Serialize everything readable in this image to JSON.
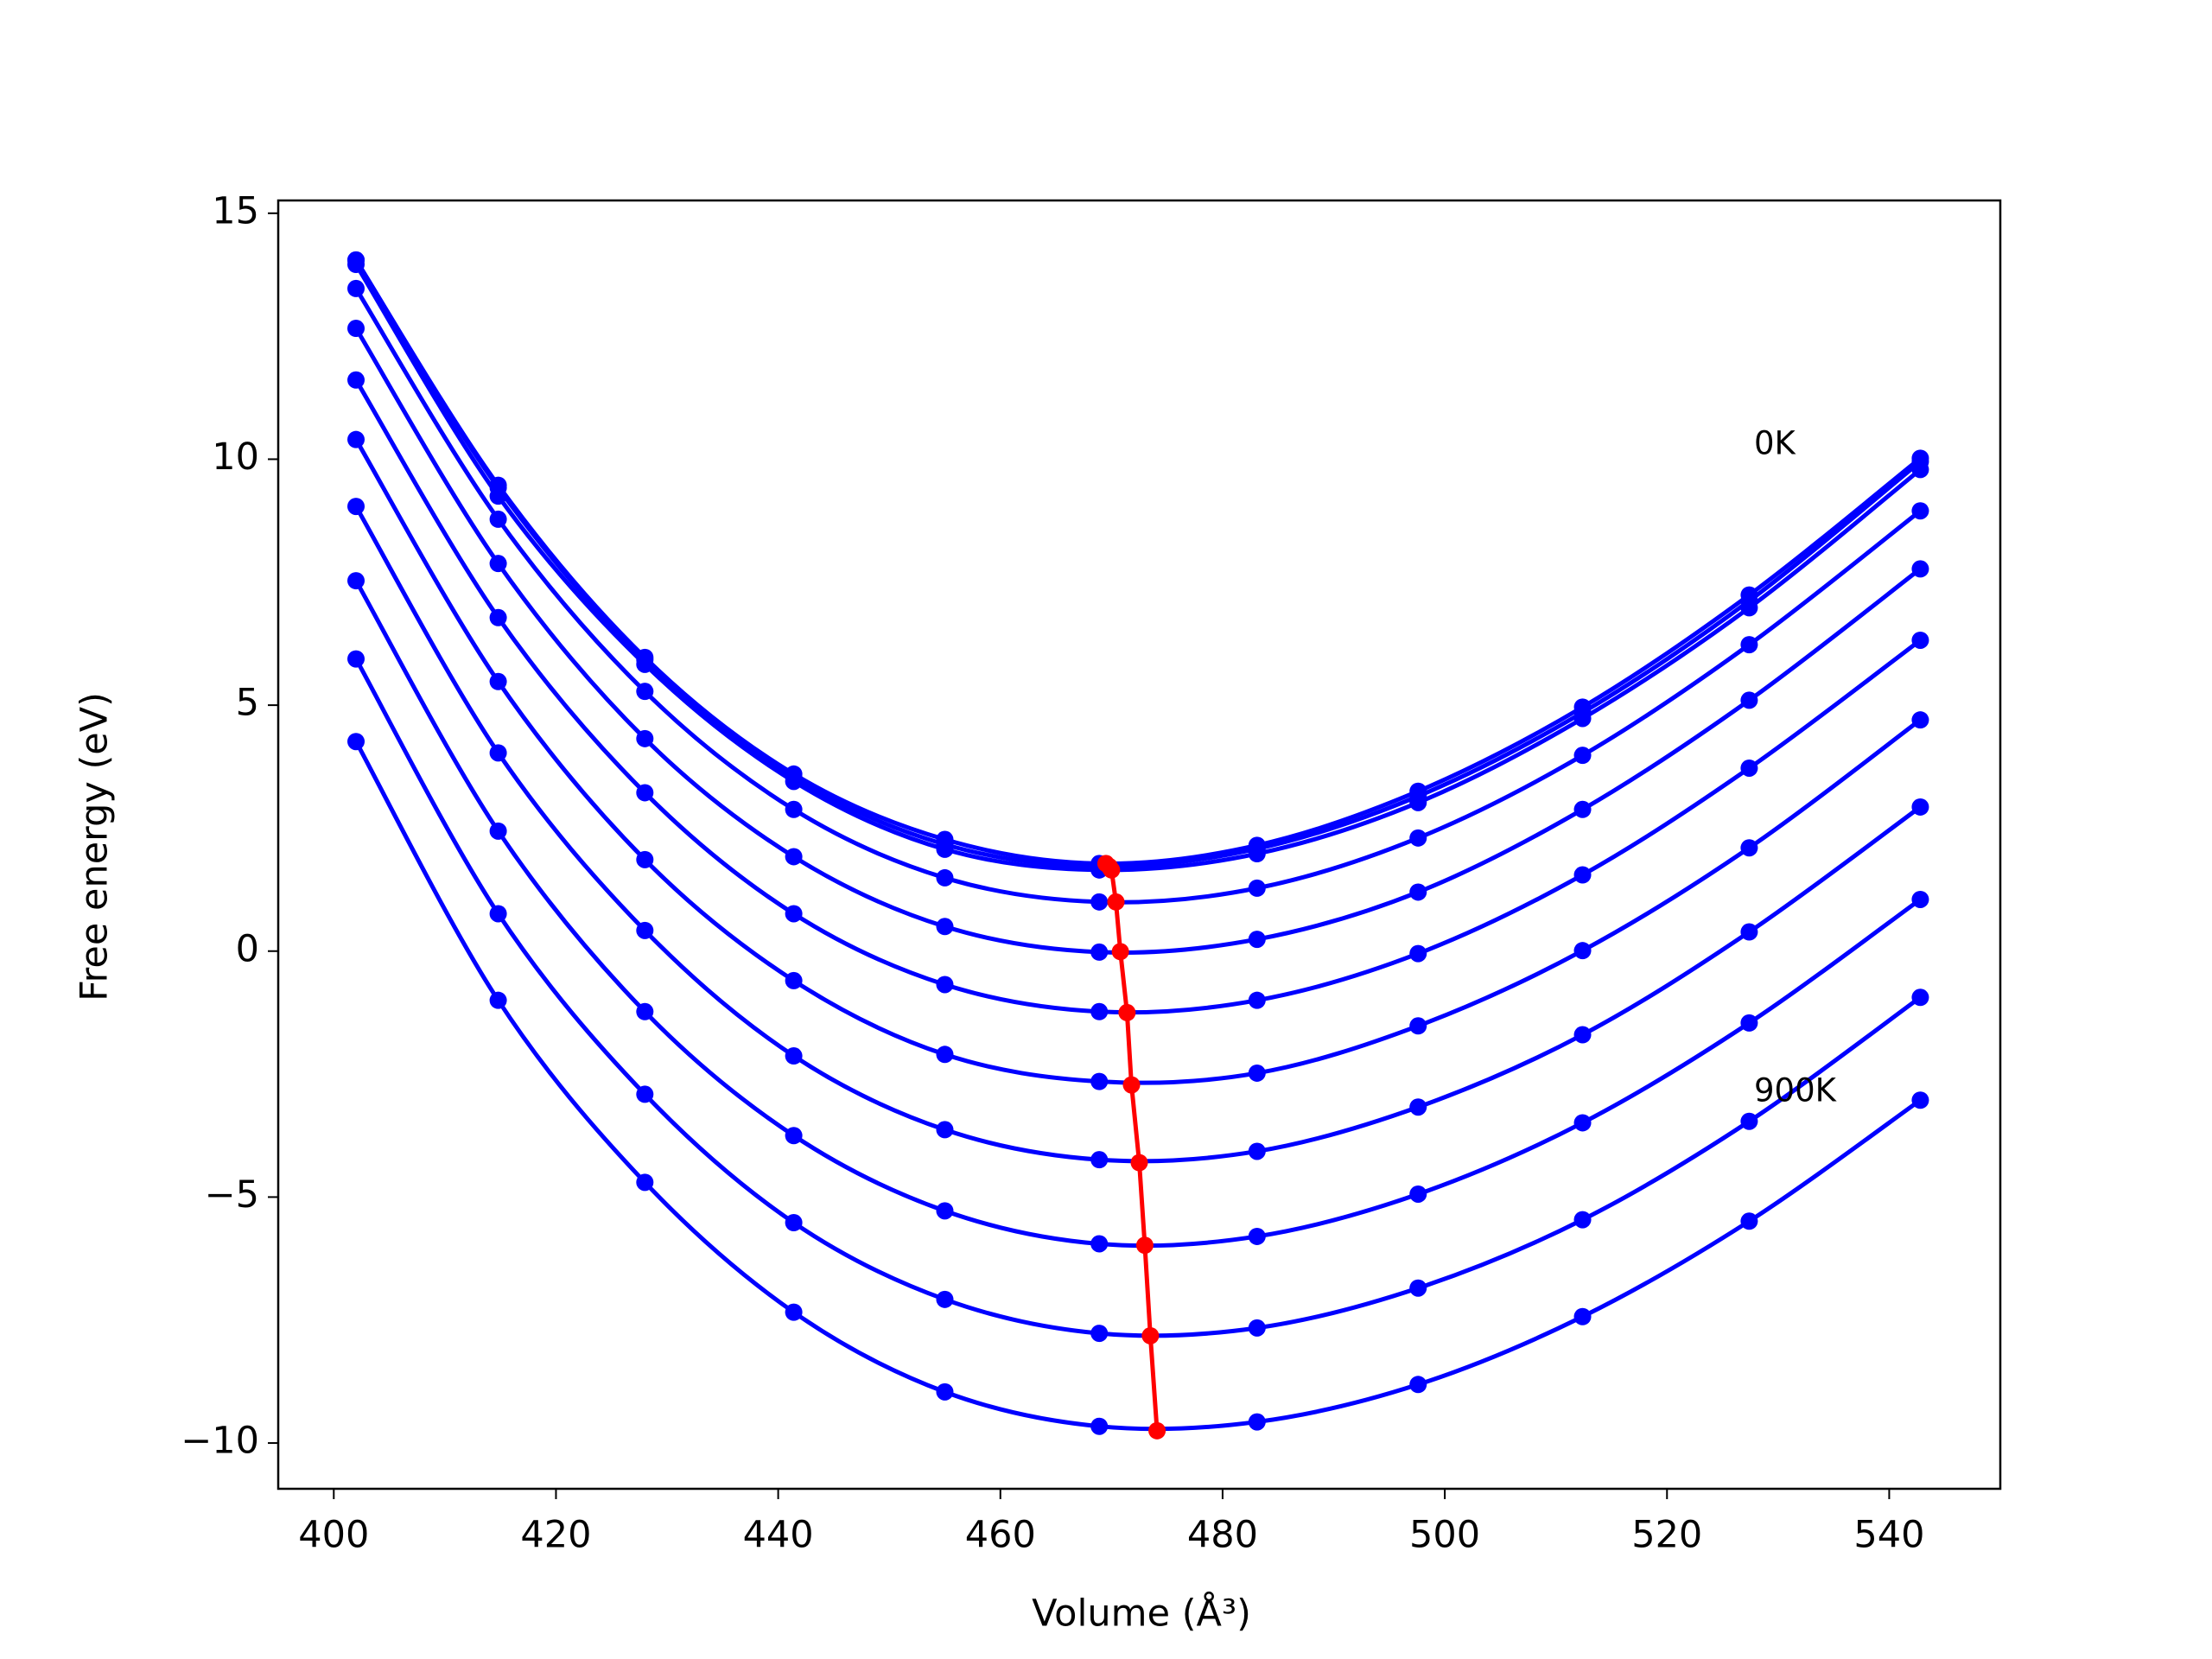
{
  "chart_data": {
    "type": "line",
    "xlabel": "Volume (Å³)",
    "ylabel": "Free energy (eV)",
    "x": [
      402.0,
      414.8,
      428.0,
      441.4,
      455.0,
      468.9,
      483.1,
      497.6,
      512.4,
      527.4,
      542.8
    ],
    "series": [
      {
        "color": "#0000ff",
        "values": [
          14.05,
          9.47,
          5.97,
          3.6,
          2.27,
          1.78,
          2.15,
          3.25,
          4.96,
          7.24,
          10.02
        ]
      },
      {
        "color": "#0000ff",
        "values": [
          14.05,
          9.42,
          5.92,
          3.53,
          2.17,
          1.72,
          2.08,
          3.15,
          4.85,
          7.12,
          9.95
        ]
      },
      {
        "color": "#0000ff",
        "values": [
          13.96,
          9.25,
          5.83,
          3.45,
          2.07,
          1.65,
          1.98,
          3.02,
          4.73,
          6.98,
          9.79
        ]
      },
      {
        "color": "#0000ff",
        "values": [
          13.47,
          8.78,
          5.28,
          2.88,
          1.49,
          1.0,
          1.28,
          2.3,
          3.98,
          6.23,
          8.95
        ]
      },
      {
        "color": "#0000ff",
        "values": [
          12.66,
          7.88,
          4.32,
          1.92,
          0.5,
          -0.02,
          0.24,
          1.2,
          2.88,
          5.1,
          7.77
        ]
      },
      {
        "color": "#0000ff",
        "values": [
          11.61,
          6.78,
          3.22,
          0.76,
          -0.68,
          -1.23,
          -1.0,
          -0.05,
          1.55,
          3.72,
          6.32
        ]
      },
      {
        "color": "#0000ff",
        "values": [
          10.4,
          5.48,
          1.86,
          -0.6,
          -2.1,
          -2.65,
          -2.48,
          -1.52,
          0.01,
          2.1,
          4.7
        ]
      },
      {
        "color": "#0000ff",
        "values": [
          9.04,
          4.03,
          0.42,
          -2.13,
          -3.63,
          -4.24,
          -4.07,
          -3.17,
          -1.7,
          0.39,
          2.93
        ]
      },
      {
        "color": "#0000ff",
        "values": [
          7.53,
          2.44,
          -1.23,
          -3.75,
          -5.28,
          -5.95,
          -5.8,
          -4.94,
          -3.49,
          -1.46,
          1.05
        ]
      },
      {
        "color": "#0000ff",
        "values": [
          5.94,
          0.76,
          -2.91,
          -5.52,
          -7.08,
          -7.77,
          -7.66,
          -6.85,
          -5.46,
          -3.46,
          -0.94
        ]
      },
      {
        "color": "#0000ff",
        "values": [
          4.26,
          -1.0,
          -4.7,
          -7.34,
          -8.96,
          -9.66,
          -9.57,
          -8.81,
          -7.43,
          -5.49,
          -3.03
        ]
      },
      {
        "color": "#ff0000",
        "x": [
          469.5,
          469.8,
          470.0,
          470.4,
          470.8,
          471.4,
          471.8,
          472.5,
          473.0,
          473.5,
          474.1
        ],
        "values": [
          1.78,
          1.72,
          1.65,
          1.0,
          -0.01,
          -1.25,
          -2.72,
          -4.3,
          -5.98,
          -7.82,
          -9.75
        ]
      }
    ],
    "annotations": [
      {
        "text": "0K"
      },
      {
        "text": "900K"
      }
    ],
    "xlim": [
      395,
      550
    ],
    "ylim": [
      -10.93,
      15.26
    ],
    "xticks": [
      400,
      420,
      440,
      460,
      480,
      500,
      520,
      540
    ],
    "yticks": [
      {
        "value": -10,
        "label": "−10"
      },
      {
        "value": -5,
        "label": "−5"
      },
      0,
      5,
      10,
      15
    ]
  }
}
